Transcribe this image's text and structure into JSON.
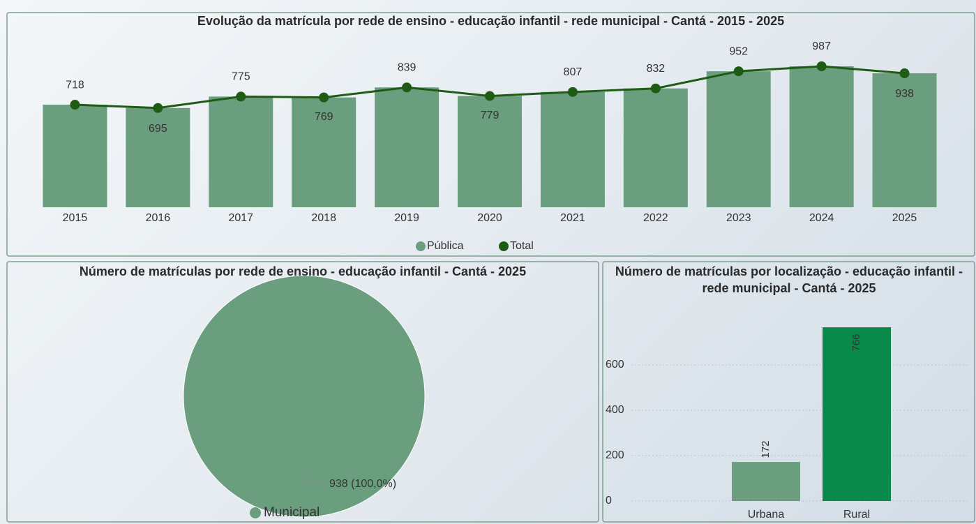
{
  "chart_data": [
    {
      "type": "combo",
      "title": "Evolução da matrícula por rede de ensino - educação infantil - rede municipal - Cantá - 2015 - 2025",
      "categories": [
        "2015",
        "2016",
        "2017",
        "2018",
        "2019",
        "2020",
        "2021",
        "2022",
        "2023",
        "2024",
        "2025"
      ],
      "series": [
        {
          "name": "Pública",
          "kind": "bar",
          "color": "#6a9e7f",
          "values": [
            718,
            695,
            775,
            769,
            839,
            779,
            807,
            832,
            952,
            987,
            938
          ]
        },
        {
          "name": "Total",
          "kind": "line",
          "color": "#1e5c14",
          "values": [
            718,
            695,
            775,
            769,
            839,
            779,
            807,
            832,
            952,
            987,
            938
          ]
        }
      ],
      "legend": "bottom"
    },
    {
      "type": "pie",
      "title": "Número de matrículas por rede de ensino - educação infantil - Cantá - 2025",
      "categories": [
        "Municipal"
      ],
      "values": [
        938
      ],
      "value_labels": [
        "938 (100,0%)"
      ],
      "colors": [
        "#6a9e7f"
      ],
      "legend": "bottom"
    },
    {
      "type": "bar",
      "title": "Número de matrículas por localização - educação infantil - rede municipal - Cantá - 2025",
      "categories": [
        "Urbana",
        "Rural"
      ],
      "values": [
        172,
        766
      ],
      "colors": [
        "#6a9e7f",
        "#0a8a4a"
      ],
      "ylim": [
        0,
        800
      ],
      "yticks": [
        0,
        200,
        400,
        600
      ],
      "grid": true
    }
  ]
}
